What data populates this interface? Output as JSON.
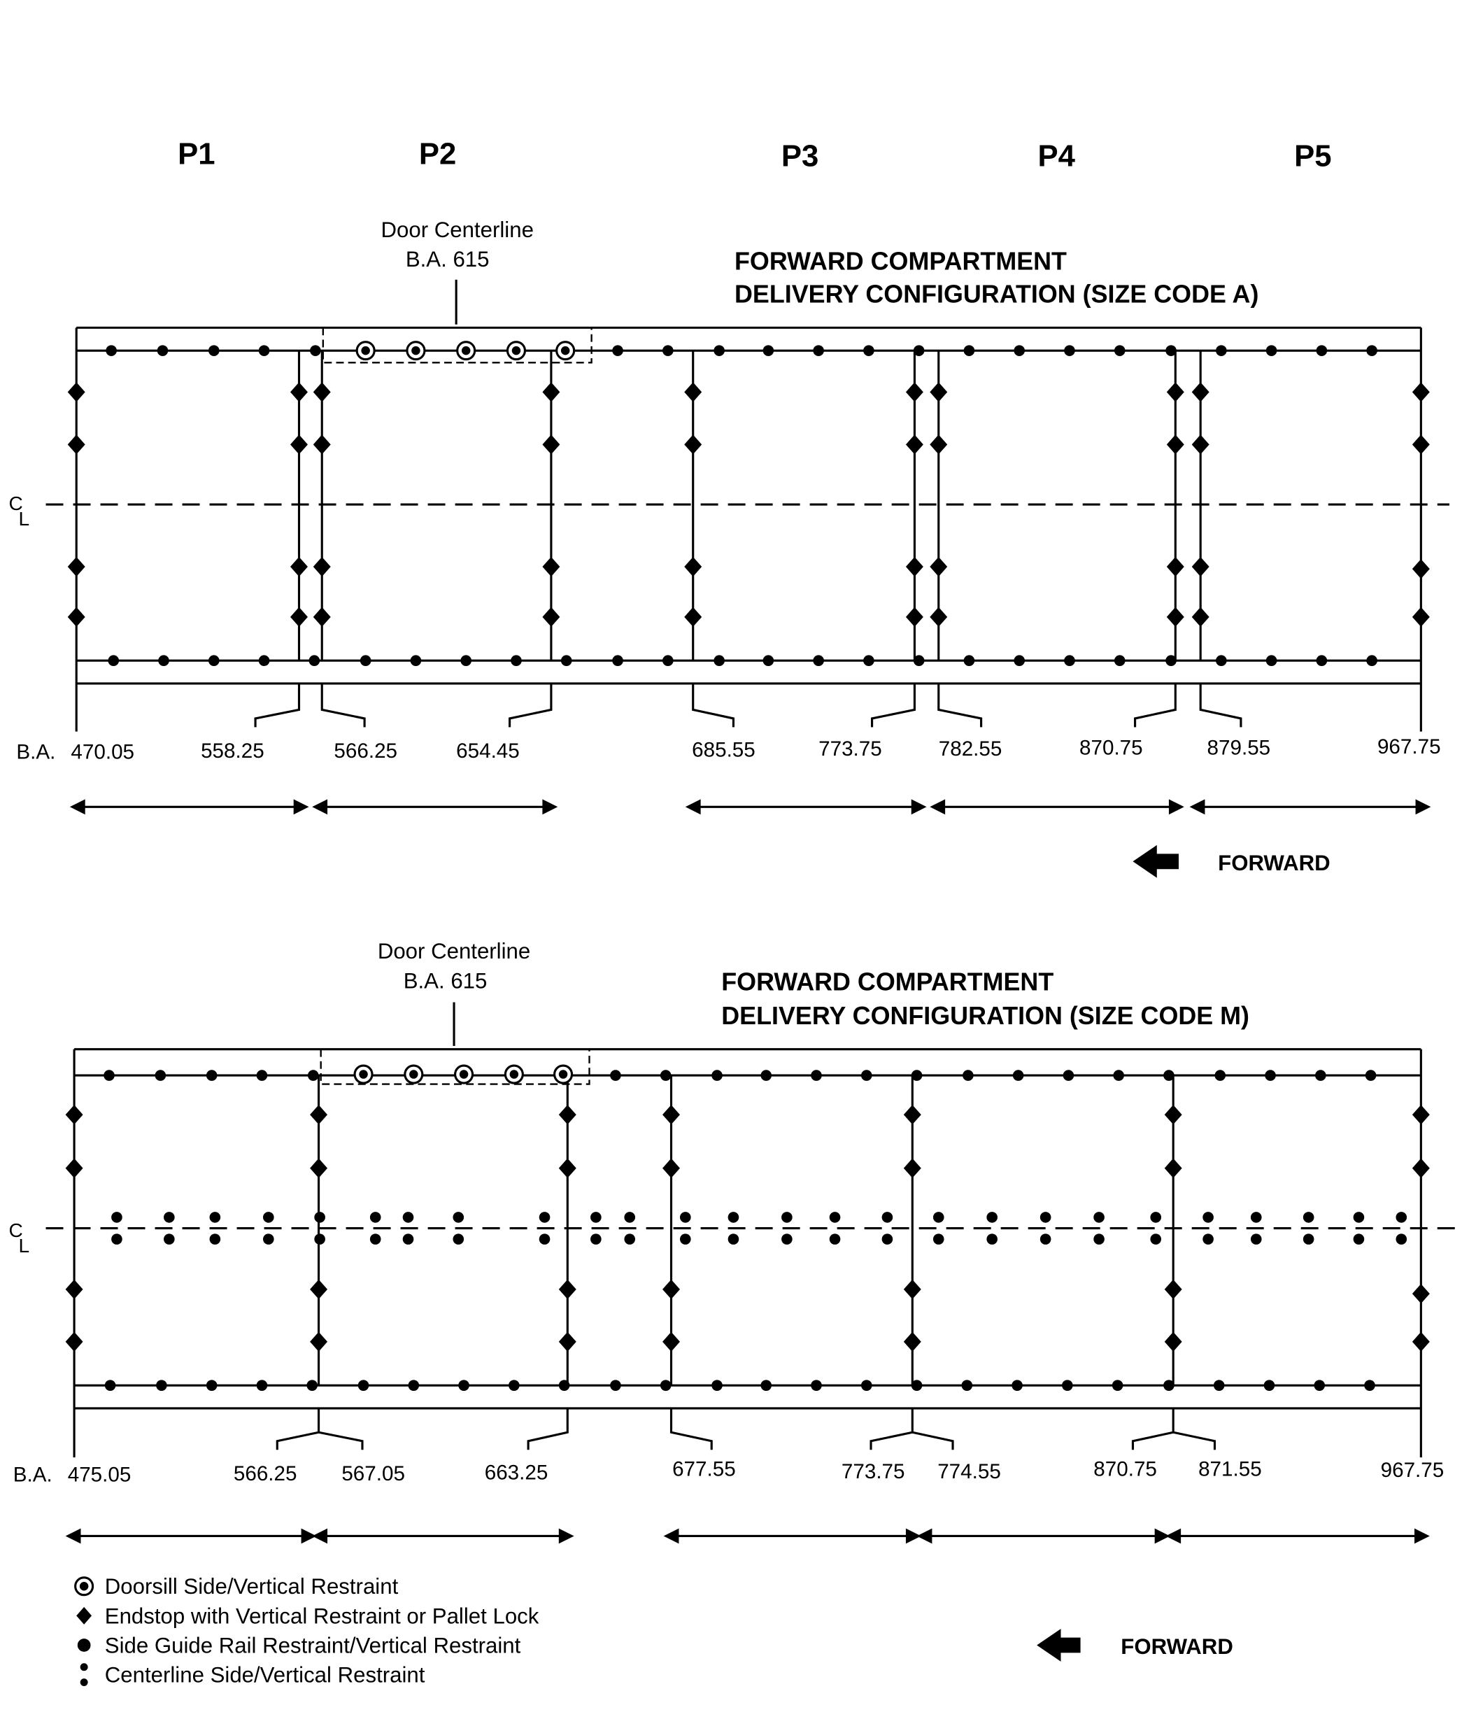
{
  "position_labels": [
    "P1",
    "P2",
    "P3",
    "P4",
    "P5"
  ],
  "diagram_a": {
    "title_line1": "FORWARD COMPARTMENT",
    "title_line2": "DELIVERY CONFIGURATION (SIZE CODE A)",
    "door_label": "Door Centerline",
    "door_ba": "B.A. 615",
    "ba_prefix": "B.A.",
    "stations": [
      "470.05",
      "558.25",
      "566.25",
      "654.45",
      "685.55",
      "773.75",
      "782.55",
      "870.75",
      "879.55",
      "967.75"
    ],
    "forward_label": "FORWARD"
  },
  "diagram_m": {
    "title_line1": "FORWARD COMPARTMENT",
    "title_line2": "DELIVERY CONFIGURATION (SIZE CODE M)",
    "door_label": "Door Centerline",
    "door_ba": "B.A. 615",
    "ba_prefix": "B.A.",
    "stations": [
      "475.05",
      "566.25",
      "567.05",
      "663.25",
      "677.55",
      "773.75",
      "774.55",
      "870.75",
      "871.55",
      "967.75"
    ],
    "forward_label": "FORWARD"
  },
  "centerline_symbol": {
    "c": "C",
    "l": "L"
  },
  "legend": [
    {
      "icon": "doorsill-restraint-icon",
      "label": "Doorsill Side/Vertical Restraint"
    },
    {
      "icon": "endstop-icon",
      "label": "Endstop with Vertical Restraint or Pallet Lock"
    },
    {
      "icon": "side-guide-rail-icon",
      "label": "Side Guide Rail Restraint/Vertical Restraint"
    },
    {
      "icon": "centerline-restraint-icon",
      "label": "Centerline Side/Vertical Restraint"
    }
  ]
}
